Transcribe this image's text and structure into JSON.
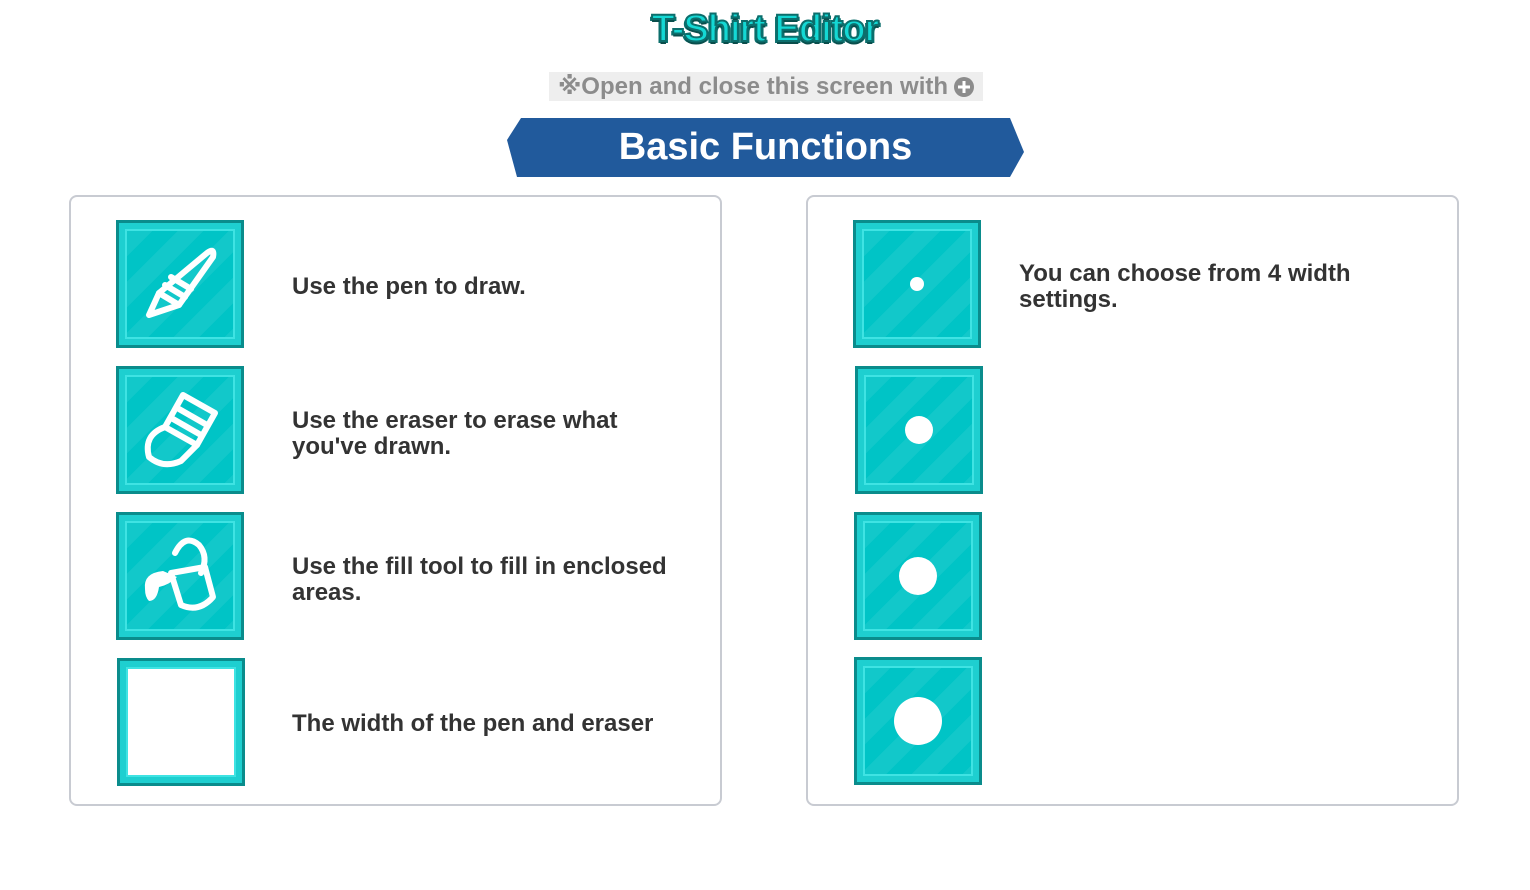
{
  "title": "T-Shirt Editor",
  "hint": {
    "text": "※Open and close this screen with",
    "button_icon": "plus-button-icon"
  },
  "section_title": "Basic Functions",
  "left_panel": {
    "items": [
      {
        "icon": "pen-icon",
        "text": "Use the pen to draw."
      },
      {
        "icon": "eraser-icon",
        "text": "Use the eraser to erase what you've drawn."
      },
      {
        "icon": "fill-bucket-icon",
        "text": "Use the fill tool to fill in enclosed areas."
      },
      {
        "icon": "blank-width-icon",
        "text": "The width of the pen and eraser"
      }
    ]
  },
  "right_panel": {
    "text": "You can choose from 4 width settings.",
    "width_settings": [
      "width-1-icon",
      "width-2-icon",
      "width-3-icon",
      "width-4-icon"
    ]
  },
  "colors": {
    "title_fill": "#14d8d4",
    "title_outline": "#0c6e6c",
    "banner": "#215a9c",
    "tile": "#00c4c6",
    "tile_border": "#0a8c8c",
    "text": "#333333"
  }
}
